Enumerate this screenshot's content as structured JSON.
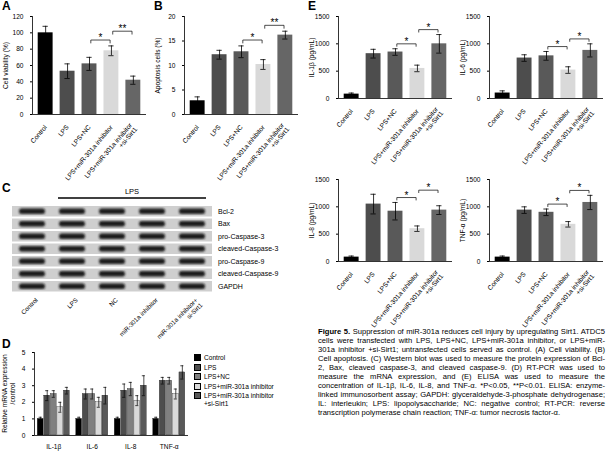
{
  "figure_caption": {
    "label": "Figure 5.",
    "text": "Suppression of miR-301a reduces cell injury by upregulating Sirt1. ATDC5 cells were transfected with LPS, LPS+NC, LPS+miR-301a inhibitor, or LPS+miR-301a inhibitor +si-Sirt1; untransfected cells served as control. (A) Cell viability. (B) Cell apoptosis. (C) Western blot was used to measure the protein expression of Bcl-2, Bax, cleaved caspase-3, and cleaved caspase-9. (D) RT-PCR was used to measure the mRNA expression, and (E) ELISA was used to measure the concentration of IL-1β, IL-6, IL-8, and TNF-α. *P<0.05, **P<0.01. ELISA: enzyme-linked immunosorbent assay; GAPDH: glyceraldehyde-3-phosphate dehydrogenase; IL: interleukin; LPS: lipopolysaccharide; NC: negative control; RT-PCR: reverse transcription polymerase chain reaction; TNF-α: tumor necrosis factor-α."
  },
  "chart_data": [
    {
      "panel_label": "A",
      "type": "bar",
      "y_label": "Cell viability (%)",
      "categories": [
        "Control",
        "LPS",
        "LPS+NC",
        "LPS+miR-301a inhibitor",
        "LPS+miR-301a inhibitor +si-Sirt1"
      ],
      "values": [
        100,
        53,
        62,
        78,
        42
      ],
      "errors": [
        8,
        9,
        8,
        6,
        5
      ],
      "colors": [
        "#000000",
        "#4d4d4d",
        "#595959",
        "#d9d9d9",
        "#666666"
      ],
      "ylim": [
        0,
        120
      ],
      "yticks": [
        0,
        20,
        40,
        60,
        80,
        100,
        120
      ],
      "significance": [
        {
          "pair": [
            "LPS+NC",
            "LPS+miR-301a inhibitor"
          ],
          "label": "*"
        },
        {
          "pair": [
            "LPS+miR-301a inhibitor",
            "LPS+miR-301a inhibitor +si-Sirt1"
          ],
          "label": "**"
        }
      ]
    },
    {
      "panel_label": "B",
      "type": "bar",
      "y_label": "Apoptosis cells (%)",
      "categories": [
        "Control",
        "LPS",
        "LPS+NC",
        "LPS+miR-301a inhibitor",
        "LPS+miR-301a inhibitor +si-Sirt1"
      ],
      "values": [
        2.8,
        12.2,
        12.8,
        10.2,
        16.2
      ],
      "errors": [
        0.8,
        0.9,
        1.2,
        1.0,
        0.8
      ],
      "colors": [
        "#000000",
        "#4d4d4d",
        "#595959",
        "#d9d9d9",
        "#666666"
      ],
      "ylim": [
        0,
        20
      ],
      "yticks": [
        0,
        5,
        10,
        15,
        20
      ],
      "significance": [
        {
          "pair": [
            "LPS+NC",
            "LPS+miR-301a inhibitor"
          ],
          "label": "*"
        },
        {
          "pair": [
            "LPS+miR-301a inhibitor",
            "LPS+miR-301a inhibitor +si-Sirt1"
          ],
          "label": "**"
        }
      ]
    },
    {
      "panel_label": "D",
      "type": "bar",
      "y_label": "Relative mRNA expression /control",
      "categories": [
        "IL-1β",
        "IL-6",
        "IL-8",
        "TNF-α"
      ],
      "legend": "right",
      "series": [
        {
          "name": "Control",
          "color": "#000000",
          "values": [
            1,
            1,
            1,
            1
          ],
          "errors": [
            0.1,
            0.1,
            0.1,
            0.1
          ]
        },
        {
          "name": "LPS",
          "color": "#4d4d4d",
          "values": [
            2.4,
            2.5,
            2.7,
            3.3
          ],
          "errors": [
            0.3,
            0.3,
            0.4,
            0.2
          ]
        },
        {
          "name": "LPS+NC",
          "color": "#808080",
          "values": [
            2.5,
            2.5,
            2.8,
            3.3
          ],
          "errors": [
            0.2,
            0.3,
            0.4,
            0.2
          ]
        },
        {
          "name": "LPS+miR-301a inhibitor",
          "color": "#d9d9d9",
          "values": [
            1.7,
            2.0,
            2.1,
            2.5
          ],
          "errors": [
            0.3,
            0.3,
            0.3,
            0.3
          ]
        },
        {
          "name": "LPS+miR-301a inhibitor +si-Sirt1",
          "color": "#595959",
          "values": [
            2.7,
            2.4,
            3.0,
            3.8
          ],
          "errors": [
            0.2,
            0.5,
            0.6,
            0.4
          ]
        }
      ],
      "ylim": [
        0,
        5
      ],
      "yticks": [
        0,
        1,
        2,
        3,
        4,
        5
      ]
    },
    {
      "panel_label": "E",
      "type": "bar",
      "y_label": "IL-1β (pg/mL)",
      "categories": [
        "Control",
        "LPS",
        "LPS+NC",
        "LPS+miR-301a inhibitor",
        "LPS+miR-301a inhibitor +si-Sirt1"
      ],
      "values": [
        80,
        820,
        850,
        550,
        1000
      ],
      "errors": [
        20,
        80,
        60,
        60,
        170
      ],
      "colors": [
        "#000000",
        "#4d4d4d",
        "#595959",
        "#d9d9d9",
        "#666666"
      ],
      "ylim": [
        0,
        1500
      ],
      "yticks": [
        0,
        500,
        1000,
        1500
      ],
      "significance": [
        {
          "pair": [
            "LPS+NC",
            "LPS+miR-301a inhibitor"
          ],
          "label": "*"
        },
        {
          "pair": [
            "LPS+miR-301a inhibitor",
            "LPS+miR-301a inhibitor +si-Sirt1"
          ],
          "label": "*"
        }
      ]
    },
    {
      "type": "bar",
      "y_label": "IL-6 (pg/mL)",
      "categories": [
        "Control",
        "LPS",
        "LPS+NC",
        "LPS+miR-301a inhibitor",
        "LPS+miR-301a inhibitor +si-Sirt1"
      ],
      "values": [
        100,
        740,
        780,
        520,
        880
      ],
      "errors": [
        40,
        60,
        80,
        60,
        120
      ],
      "colors": [
        "#000000",
        "#4d4d4d",
        "#595959",
        "#d9d9d9",
        "#666666"
      ],
      "ylim": [
        0,
        1500
      ],
      "yticks": [
        0,
        500,
        1000,
        1500
      ],
      "significance": [
        {
          "pair": [
            "LPS+NC",
            "LPS+miR-301a inhibitor"
          ],
          "label": "*"
        },
        {
          "pair": [
            "LPS+miR-301a inhibitor",
            "LPS+miR-301a inhibitor +si-Sirt1"
          ],
          "label": "*"
        }
      ]
    },
    {
      "type": "bar",
      "y_label": "IL-8 (pg/mL)",
      "categories": [
        "Control",
        "LPS",
        "LPS+NC",
        "LPS+miR-301a inhibitor",
        "LPS+miR-301a inhibitor +si-Sirt1"
      ],
      "values": [
        80,
        1050,
        920,
        600,
        940
      ],
      "errors": [
        20,
        180,
        160,
        50,
        80
      ],
      "colors": [
        "#000000",
        "#4d4d4d",
        "#595959",
        "#d9d9d9",
        "#666666"
      ],
      "ylim": [
        0,
        1500
      ],
      "yticks": [
        0,
        500,
        1000,
        1500
      ],
      "significance": [
        {
          "pair": [
            "LPS+NC",
            "LPS+miR-301a inhibitor"
          ],
          "label": "*"
        },
        {
          "pair": [
            "LPS+miR-301a inhibitor",
            "LPS+miR-301a inhibitor +si-Sirt1"
          ],
          "label": "*"
        }
      ]
    },
    {
      "type": "bar",
      "y_label": "TNF-α (pg/mL)",
      "categories": [
        "Control",
        "LPS",
        "LPS+NC",
        "LPS+miR-301a inhibitor",
        "LPS+miR-301a inhibitor +si-Sirt1"
      ],
      "values": [
        80,
        940,
        900,
        680,
        1080
      ],
      "errors": [
        20,
        60,
        60,
        50,
        130
      ],
      "colors": [
        "#000000",
        "#4d4d4d",
        "#595959",
        "#d9d9d9",
        "#666666"
      ],
      "ylim": [
        0,
        1500
      ],
      "yticks": [
        0,
        500,
        1000,
        1500
      ],
      "significance": [
        {
          "pair": [
            "LPS+NC",
            "LPS+miR-301a inhibitor"
          ],
          "label": "*"
        },
        {
          "pair": [
            "LPS+miR-301a inhibitor",
            "LPS+miR-301a inhibitor +si-Sirt1"
          ],
          "label": "*"
        }
      ]
    }
  ],
  "western_blot": {
    "panel_label": "C",
    "group_label": "LPS",
    "group_lanes": [
      "LPS",
      "NC",
      "miR-301a inhibitor",
      "miR-301a inhibitor+si-Sirt1"
    ],
    "lanes": [
      "Control",
      "LPS",
      "NC",
      "miR-301a inhibitor",
      "miR-301a inhibitor+si-Sirt1"
    ],
    "rows": [
      "Bcl-2",
      "Bax",
      "pro-Caspase-3",
      "cleaved-Caspase-3",
      "pro-Caspase-9",
      "cleaved-Caspase-9",
      "GAPDH"
    ]
  }
}
